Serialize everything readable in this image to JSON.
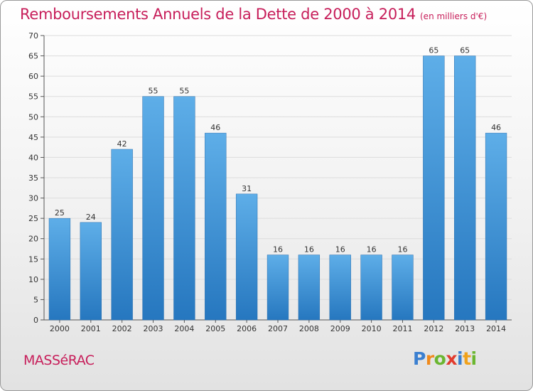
{
  "title": "Remboursements Annuels de la Dette de 2000 à 2014",
  "unit_note": "(en milliers d'€)",
  "commune": "MASSéRAC",
  "logo": {
    "text": "Proxiti",
    "letters": [
      {
        "ch": "P",
        "color": "#3a7fd0"
      },
      {
        "ch": "r",
        "color": "#f08a1c"
      },
      {
        "ch": "o",
        "color": "#6bb631"
      },
      {
        "ch": "x",
        "color": "#e23b2e"
      },
      {
        "ch": "i",
        "color": "#3a7fd0"
      },
      {
        "ch": "t",
        "color": "#f0a21c"
      },
      {
        "ch": "i",
        "color": "#6bb631"
      }
    ]
  },
  "colors": {
    "bar_light": "#5eaee8",
    "bar_dark": "#2677bf",
    "title": "#c71e5a"
  },
  "chart_data": {
    "type": "bar",
    "title": "Remboursements Annuels de la Dette de 2000 à 2014",
    "subtitle": "(en milliers d'€)",
    "categories": [
      "2000",
      "2001",
      "2002",
      "2003",
      "2004",
      "2005",
      "2006",
      "2007",
      "2008",
      "2009",
      "2010",
      "2011",
      "2012",
      "2013",
      "2014"
    ],
    "values": [
      25,
      24,
      42,
      55,
      55,
      46,
      31,
      16,
      16,
      16,
      16,
      16,
      65,
      65,
      46
    ],
    "ylim": [
      0,
      70
    ],
    "yticks": [
      0,
      5,
      10,
      15,
      20,
      25,
      30,
      35,
      40,
      45,
      50,
      55,
      60,
      65,
      70
    ],
    "grid": true,
    "data_labels": true
  }
}
